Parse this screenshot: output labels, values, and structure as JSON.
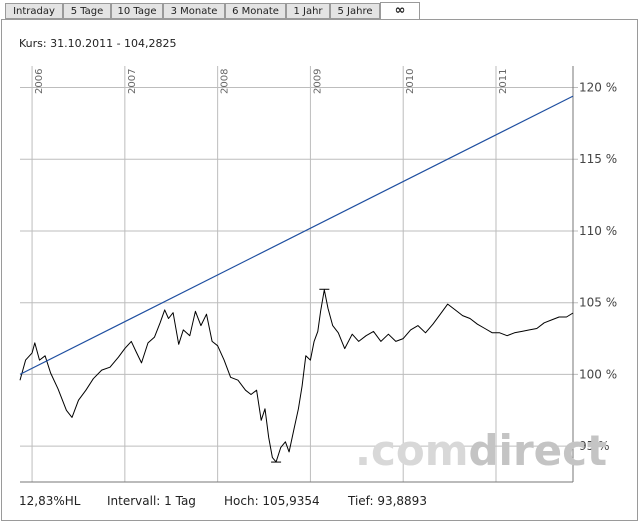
{
  "tabs": [
    {
      "label": "Intraday"
    },
    {
      "label": "5 Tage"
    },
    {
      "label": "10 Tage"
    },
    {
      "label": "3 Monate"
    },
    {
      "label": "6 Monate"
    },
    {
      "label": "1 Jahr"
    },
    {
      "label": "5 Jahre"
    },
    {
      "label": "∞"
    }
  ],
  "active_tab": 7,
  "kurs_text": "Kurs: 31.10.2011 - 104,2825",
  "watermark": {
    "prefix": ".com",
    "suffix": "direct"
  },
  "footer": {
    "hl": "12,83%HL",
    "intervall": "Intervall: 1 Tag",
    "hoch": "Hoch: 105,9354",
    "tief": "Tief: 93,8893"
  },
  "colors": {
    "price_line": "#000000",
    "trend_line": "#1f4fa0",
    "grid": "#bdbdbd"
  },
  "chart_data": {
    "type": "line",
    "x_axis": {
      "type": "time",
      "tick_labels": [
        "2006",
        "2007",
        "2008",
        "2009",
        "2010",
        "2011"
      ],
      "tick_dates": [
        2006.0,
        2007.0,
        2008.0,
        2009.0,
        2010.0,
        2011.0
      ],
      "range": [
        2005.87,
        2011.83
      ]
    },
    "y_axis": {
      "unit": "%",
      "position": "right",
      "tick_values": [
        95,
        100,
        105,
        110,
        115,
        120
      ],
      "tick_labels": [
        "95 %",
        "100 %",
        "105 %",
        "110 %",
        "115 %",
        "120 %"
      ],
      "range": [
        92.5,
        121.5
      ]
    },
    "grid": true,
    "series": [
      {
        "kind": "price",
        "points": [
          [
            2005.87,
            99.6
          ],
          [
            2005.93,
            101.0
          ],
          [
            2006.0,
            101.5
          ],
          [
            2006.03,
            102.2
          ],
          [
            2006.08,
            101.0
          ],
          [
            2006.14,
            101.3
          ],
          [
            2006.2,
            100.1
          ],
          [
            2006.28,
            99.0
          ],
          [
            2006.37,
            97.5
          ],
          [
            2006.43,
            97.0
          ],
          [
            2006.5,
            98.2
          ],
          [
            2006.58,
            98.9
          ],
          [
            2006.66,
            99.7
          ],
          [
            2006.75,
            100.3
          ],
          [
            2006.84,
            100.5
          ],
          [
            2006.93,
            101.2
          ],
          [
            2007.0,
            101.8
          ],
          [
            2007.07,
            102.3
          ],
          [
            2007.12,
            101.6
          ],
          [
            2007.18,
            100.8
          ],
          [
            2007.25,
            102.2
          ],
          [
            2007.32,
            102.6
          ],
          [
            2007.38,
            103.6
          ],
          [
            2007.43,
            104.5
          ],
          [
            2007.47,
            103.9
          ],
          [
            2007.52,
            104.3
          ],
          [
            2007.58,
            102.1
          ],
          [
            2007.63,
            103.1
          ],
          [
            2007.7,
            102.7
          ],
          [
            2007.76,
            104.4
          ],
          [
            2007.82,
            103.4
          ],
          [
            2007.88,
            104.2
          ],
          [
            2007.94,
            102.3
          ],
          [
            2008.0,
            102.0
          ],
          [
            2008.07,
            101.0
          ],
          [
            2008.14,
            99.8
          ],
          [
            2008.22,
            99.6
          ],
          [
            2008.3,
            98.9
          ],
          [
            2008.36,
            98.6
          ],
          [
            2008.42,
            98.9
          ],
          [
            2008.47,
            96.8
          ],
          [
            2008.51,
            97.6
          ],
          [
            2008.55,
            95.6
          ],
          [
            2008.59,
            94.2
          ],
          [
            2008.63,
            93.9
          ],
          [
            2008.68,
            94.9
          ],
          [
            2008.73,
            95.3
          ],
          [
            2008.77,
            94.6
          ],
          [
            2008.82,
            96.1
          ],
          [
            2008.87,
            97.6
          ],
          [
            2008.91,
            99.2
          ],
          [
            2008.95,
            101.3
          ],
          [
            2009.0,
            101.0
          ],
          [
            2009.04,
            102.3
          ],
          [
            2009.08,
            103.0
          ],
          [
            2009.11,
            104.4
          ],
          [
            2009.15,
            105.9
          ],
          [
            2009.19,
            104.6
          ],
          [
            2009.24,
            103.4
          ],
          [
            2009.3,
            102.9
          ],
          [
            2009.37,
            101.8
          ],
          [
            2009.45,
            102.8
          ],
          [
            2009.52,
            102.3
          ],
          [
            2009.6,
            102.7
          ],
          [
            2009.68,
            103.0
          ],
          [
            2009.76,
            102.3
          ],
          [
            2009.84,
            102.8
          ],
          [
            2009.92,
            102.3
          ],
          [
            2010.0,
            102.5
          ],
          [
            2010.08,
            103.1
          ],
          [
            2010.16,
            103.4
          ],
          [
            2010.24,
            102.9
          ],
          [
            2010.32,
            103.5
          ],
          [
            2010.4,
            104.2
          ],
          [
            2010.48,
            104.9
          ],
          [
            2010.56,
            104.5
          ],
          [
            2010.64,
            104.1
          ],
          [
            2010.72,
            103.9
          ],
          [
            2010.8,
            103.5
          ],
          [
            2010.88,
            103.2
          ],
          [
            2010.96,
            102.9
          ],
          [
            2011.04,
            102.9
          ],
          [
            2011.12,
            102.7
          ],
          [
            2011.2,
            102.9
          ],
          [
            2011.28,
            103.0
          ],
          [
            2011.36,
            103.1
          ],
          [
            2011.44,
            103.2
          ],
          [
            2011.52,
            103.6
          ],
          [
            2011.6,
            103.8
          ],
          [
            2011.68,
            104.0
          ],
          [
            2011.76,
            104.0
          ],
          [
            2011.83,
            104.28
          ]
        ]
      },
      {
        "kind": "trend",
        "points": [
          [
            2005.87,
            100.0
          ],
          [
            2011.83,
            119.4
          ]
        ]
      }
    ],
    "markers": [
      {
        "label": "Hoch",
        "x": 2009.15,
        "y": 105.9354
      },
      {
        "label": "Tief",
        "x": 2008.63,
        "y": 93.8893
      }
    ]
  }
}
